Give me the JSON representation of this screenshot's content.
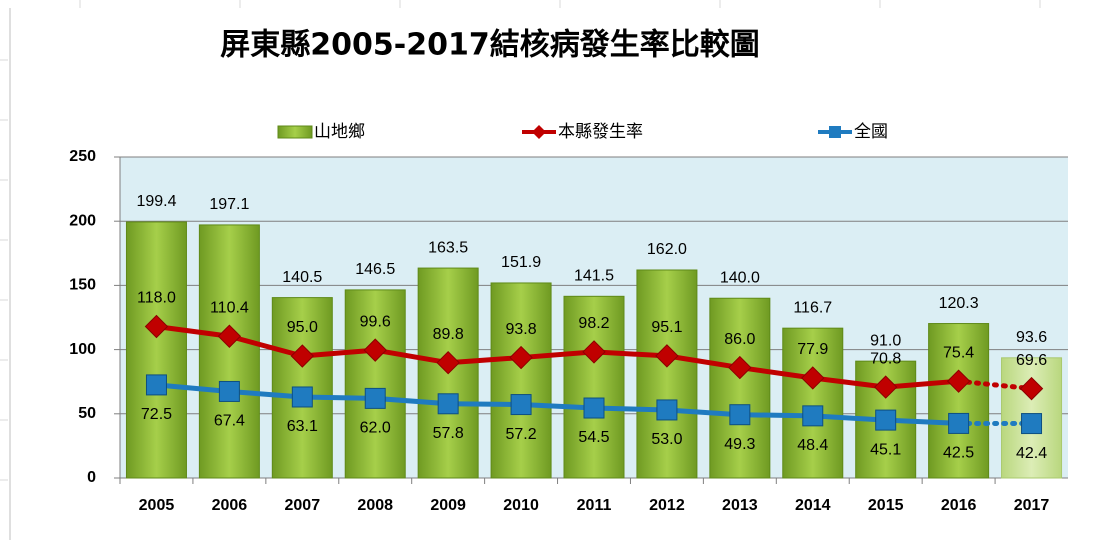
{
  "chart_data": {
    "type": "combo",
    "title": "屏東縣2005-2017結核病發生率比較圖",
    "categories": [
      "2005",
      "2006",
      "2007",
      "2008",
      "2009",
      "2010",
      "2011",
      "2012",
      "2013",
      "2014",
      "2015",
      "2016",
      "2017"
    ],
    "series": [
      {
        "name": "山地鄉",
        "type": "bar",
        "color": "#92c13c",
        "values": [
          199.4,
          197.1,
          140.5,
          146.5,
          163.5,
          151.9,
          141.5,
          162.0,
          140.0,
          116.7,
          91.0,
          120.3,
          93.6
        ],
        "value_labels": [
          "199.4",
          "197.1",
          "140.5",
          "146.5",
          "163.5",
          "151.9",
          "141.5",
          "162.0",
          "140.0",
          "116.7",
          "91.0",
          "120.3",
          "93.6"
        ]
      },
      {
        "name": "本縣發生率",
        "type": "line",
        "color": "#c00000",
        "marker": "diamond",
        "values": [
          118.0,
          110.4,
          95.0,
          99.6,
          89.8,
          93.8,
          98.2,
          95.1,
          86.0,
          77.9,
          70.8,
          75.4,
          69.6
        ],
        "value_labels": [
          "118.0",
          "110.4",
          "95.0",
          "99.6",
          "89.8",
          "93.8",
          "98.2",
          "95.1",
          "86.0",
          "77.9",
          "70.8",
          "75.4",
          "69.6"
        ]
      },
      {
        "name": "全國",
        "type": "line",
        "color": "#1f7bc0",
        "marker": "square",
        "values": [
          72.5,
          67.4,
          63.1,
          62.0,
          57.8,
          57.2,
          54.5,
          53.0,
          49.3,
          48.4,
          45.1,
          42.5,
          42.4
        ],
        "value_labels": [
          "72.5",
          "67.4",
          "63.1",
          "62.0",
          "57.8",
          "57.2",
          "54.5",
          "53.0",
          "49.3",
          "48.4",
          "45.1",
          "42.5",
          "42.4"
        ]
      }
    ],
    "ylim": [
      0,
      250
    ],
    "yticks": [
      0,
      50,
      100,
      150,
      200,
      250
    ],
    "grid": true,
    "legend": "top"
  }
}
